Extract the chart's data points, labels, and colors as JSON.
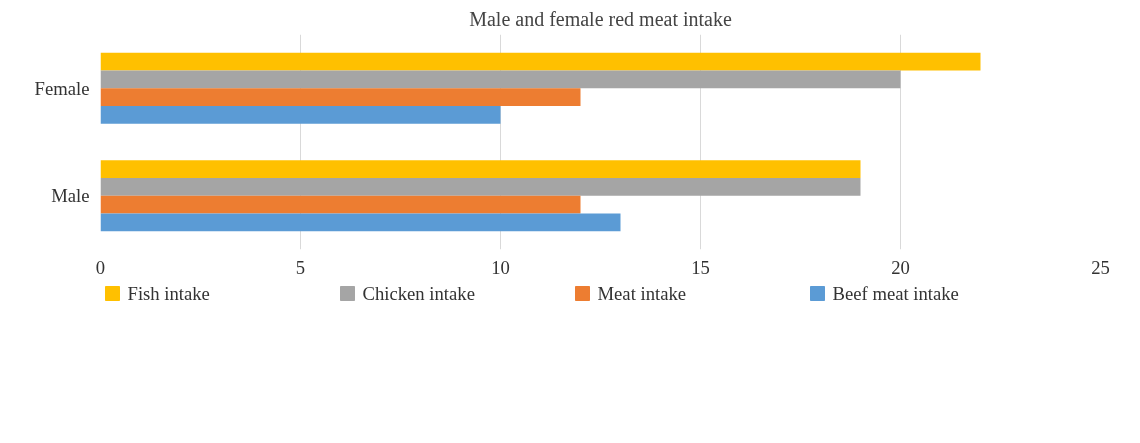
{
  "chart_data": {
    "type": "bar",
    "orientation": "horizontal",
    "title": "Male and female red meat intake",
    "categories": [
      "Female",
      "Male"
    ],
    "series": [
      {
        "name": "Fish intake",
        "color": "#ffc000",
        "values": [
          22,
          19
        ]
      },
      {
        "name": "Chicken intake",
        "color": "#a5a5a5",
        "values": [
          20,
          19
        ]
      },
      {
        "name": "Meat intake",
        "color": "#ed7d31",
        "values": [
          12,
          12
        ]
      },
      {
        "name": "Beef meat intake",
        "color": "#5b9bd5",
        "values": [
          10,
          13
        ]
      }
    ],
    "xlim": [
      0,
      25
    ],
    "xticks": [
      0,
      5,
      10,
      15,
      20,
      25
    ],
    "grid": "x",
    "legend": "bottom"
  }
}
